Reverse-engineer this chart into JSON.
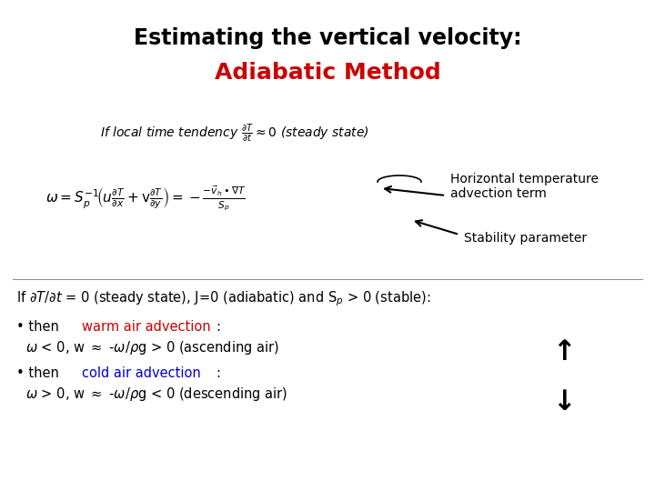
{
  "title_line1": "Estimating the vertical velocity:",
  "title_line2": "Adiabatic Method",
  "title_color1": "#000000",
  "title_color2": "#cc0000",
  "bg_color": "#ffffff",
  "label1": "Horizontal temperature\nadvection term",
  "label2": "Stability parameter",
  "bullet1_color": "#cc0000",
  "bullet1_colored": "warm air advection",
  "bullet2_color": "#0000cc",
  "bullet2_colored": "cold air advection"
}
